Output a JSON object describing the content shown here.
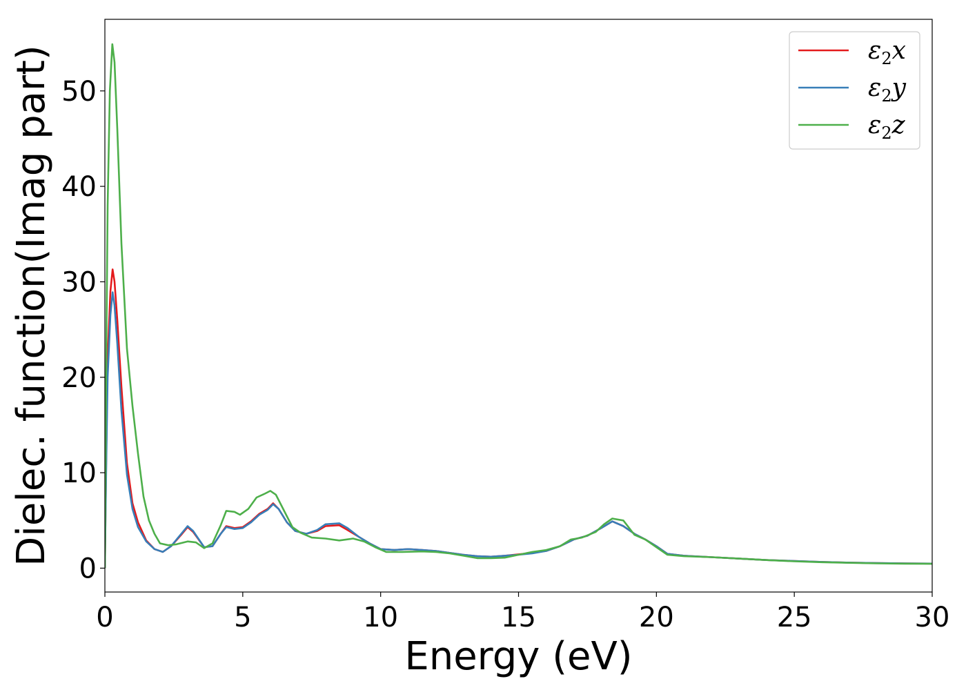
{
  "chart_data": {
    "type": "line",
    "title": "",
    "xlabel": "Energy (eV)",
    "ylabel": "Dielec. function(Imag part)",
    "xlim": [
      0,
      30
    ],
    "ylim": [
      -2.5,
      57.5
    ],
    "xticks": [
      0,
      5,
      10,
      15,
      20,
      25,
      30
    ],
    "yticks": [
      0,
      10,
      20,
      30,
      40,
      50
    ],
    "grid": false,
    "legend_position": "top-right",
    "series": [
      {
        "name": "ε₂x",
        "legend": {
          "base": "ε",
          "sub": "2",
          "var": "x"
        },
        "color": "#e41a1c",
        "points": [
          [
            0,
            0
          ],
          [
            0.05,
            12
          ],
          [
            0.1,
            22
          ],
          [
            0.2,
            29
          ],
          [
            0.28,
            31.3
          ],
          [
            0.35,
            30
          ],
          [
            0.45,
            26
          ],
          [
            0.6,
            19
          ],
          [
            0.8,
            11
          ],
          [
            1.0,
            6.8
          ],
          [
            1.2,
            4.8
          ],
          [
            1.5,
            2.9
          ],
          [
            1.8,
            2.0
          ],
          [
            2.1,
            1.7
          ],
          [
            2.4,
            2.3
          ],
          [
            2.8,
            3.6
          ],
          [
            3.0,
            4.3
          ],
          [
            3.2,
            3.8
          ],
          [
            3.6,
            2.2
          ],
          [
            3.9,
            2.3
          ],
          [
            4.2,
            3.6
          ],
          [
            4.4,
            4.4
          ],
          [
            4.7,
            4.2
          ],
          [
            5.0,
            4.3
          ],
          [
            5.3,
            4.9
          ],
          [
            5.6,
            5.7
          ],
          [
            5.9,
            6.2
          ],
          [
            6.1,
            6.8
          ],
          [
            6.3,
            6.2
          ],
          [
            6.6,
            4.8
          ],
          [
            6.9,
            3.9
          ],
          [
            7.3,
            3.6
          ],
          [
            7.7,
            3.9
          ],
          [
            8.0,
            4.4
          ],
          [
            8.5,
            4.5
          ],
          [
            8.8,
            4.0
          ],
          [
            9.2,
            3.3
          ],
          [
            9.6,
            2.6
          ],
          [
            10.0,
            2.0
          ],
          [
            10.5,
            1.9
          ],
          [
            11.0,
            2.0
          ],
          [
            11.5,
            1.9
          ],
          [
            12.0,
            1.8
          ],
          [
            12.5,
            1.6
          ],
          [
            13.0,
            1.4
          ],
          [
            13.5,
            1.25
          ],
          [
            14.0,
            1.2
          ],
          [
            14.5,
            1.3
          ],
          [
            15.0,
            1.45
          ],
          [
            15.5,
            1.6
          ],
          [
            16.0,
            1.8
          ],
          [
            16.5,
            2.3
          ],
          [
            17.0,
            3.0
          ],
          [
            17.5,
            3.4
          ],
          [
            18.0,
            4.2
          ],
          [
            18.4,
            4.9
          ],
          [
            18.8,
            4.4
          ],
          [
            19.2,
            3.6
          ],
          [
            19.6,
            3.0
          ],
          [
            20.0,
            2.3
          ],
          [
            20.4,
            1.5
          ],
          [
            21.0,
            1.3
          ],
          [
            22.0,
            1.15
          ],
          [
            23.0,
            1.0
          ],
          [
            24.0,
            0.85
          ],
          [
            25.0,
            0.75
          ],
          [
            26.0,
            0.65
          ],
          [
            27.0,
            0.58
          ],
          [
            28.0,
            0.53
          ],
          [
            29.0,
            0.5
          ],
          [
            30.0,
            0.48
          ]
        ]
      },
      {
        "name": "ε₂y",
        "legend": {
          "base": "ε",
          "sub": "2",
          "var": "y"
        },
        "color": "#377eb8",
        "points": [
          [
            0,
            0
          ],
          [
            0.05,
            11
          ],
          [
            0.1,
            20
          ],
          [
            0.2,
            26.5
          ],
          [
            0.28,
            28.9
          ],
          [
            0.35,
            27.5
          ],
          [
            0.45,
            23.5
          ],
          [
            0.6,
            16.5
          ],
          [
            0.8,
            9.8
          ],
          [
            1.0,
            6.2
          ],
          [
            1.2,
            4.3
          ],
          [
            1.5,
            2.8
          ],
          [
            1.8,
            2.0
          ],
          [
            2.1,
            1.7
          ],
          [
            2.4,
            2.3
          ],
          [
            2.8,
            3.7
          ],
          [
            3.0,
            4.4
          ],
          [
            3.2,
            3.9
          ],
          [
            3.6,
            2.2
          ],
          [
            3.9,
            2.3
          ],
          [
            4.2,
            3.6
          ],
          [
            4.4,
            4.3
          ],
          [
            4.7,
            4.1
          ],
          [
            5.0,
            4.2
          ],
          [
            5.3,
            4.8
          ],
          [
            5.6,
            5.6
          ],
          [
            5.9,
            6.1
          ],
          [
            6.1,
            6.7
          ],
          [
            6.3,
            6.2
          ],
          [
            6.6,
            4.8
          ],
          [
            6.9,
            3.9
          ],
          [
            7.3,
            3.6
          ],
          [
            7.7,
            4.0
          ],
          [
            8.0,
            4.6
          ],
          [
            8.5,
            4.7
          ],
          [
            8.8,
            4.2
          ],
          [
            9.2,
            3.3
          ],
          [
            9.6,
            2.6
          ],
          [
            10.0,
            2.0
          ],
          [
            10.5,
            1.9
          ],
          [
            11.0,
            2.0
          ],
          [
            11.5,
            1.9
          ],
          [
            12.0,
            1.8
          ],
          [
            12.5,
            1.6
          ],
          [
            13.0,
            1.4
          ],
          [
            13.5,
            1.25
          ],
          [
            14.0,
            1.2
          ],
          [
            14.5,
            1.3
          ],
          [
            15.0,
            1.4
          ],
          [
            15.5,
            1.55
          ],
          [
            16.0,
            1.8
          ],
          [
            16.5,
            2.3
          ],
          [
            17.0,
            3.0
          ],
          [
            17.5,
            3.4
          ],
          [
            18.0,
            4.2
          ],
          [
            18.4,
            4.9
          ],
          [
            18.8,
            4.4
          ],
          [
            19.2,
            3.6
          ],
          [
            19.6,
            3.0
          ],
          [
            20.0,
            2.3
          ],
          [
            20.4,
            1.5
          ],
          [
            21.0,
            1.3
          ],
          [
            22.0,
            1.15
          ],
          [
            23.0,
            1.0
          ],
          [
            24.0,
            0.85
          ],
          [
            25.0,
            0.75
          ],
          [
            26.0,
            0.65
          ],
          [
            27.0,
            0.58
          ],
          [
            28.0,
            0.53
          ],
          [
            29.0,
            0.5
          ],
          [
            30.0,
            0.48
          ]
        ]
      },
      {
        "name": "ε₂z",
        "legend": {
          "base": "ε",
          "sub": "2",
          "var": "z"
        },
        "color": "#4daf4a",
        "points": [
          [
            0,
            0
          ],
          [
            0.05,
            22
          ],
          [
            0.1,
            38
          ],
          [
            0.18,
            50
          ],
          [
            0.27,
            54.9
          ],
          [
            0.35,
            53
          ],
          [
            0.45,
            46
          ],
          [
            0.6,
            34
          ],
          [
            0.8,
            23
          ],
          [
            1.0,
            17
          ],
          [
            1.2,
            12
          ],
          [
            1.4,
            7.5
          ],
          [
            1.6,
            5.0
          ],
          [
            1.8,
            3.6
          ],
          [
            2.0,
            2.6
          ],
          [
            2.3,
            2.4
          ],
          [
            2.6,
            2.5
          ],
          [
            3.0,
            2.8
          ],
          [
            3.3,
            2.7
          ],
          [
            3.6,
            2.1
          ],
          [
            3.9,
            2.6
          ],
          [
            4.2,
            4.5
          ],
          [
            4.4,
            6.0
          ],
          [
            4.7,
            5.9
          ],
          [
            4.9,
            5.6
          ],
          [
            5.2,
            6.2
          ],
          [
            5.5,
            7.4
          ],
          [
            5.8,
            7.8
          ],
          [
            6.0,
            8.1
          ],
          [
            6.2,
            7.7
          ],
          [
            6.5,
            6.0
          ],
          [
            6.8,
            4.3
          ],
          [
            7.1,
            3.7
          ],
          [
            7.5,
            3.2
          ],
          [
            8.0,
            3.1
          ],
          [
            8.5,
            2.9
          ],
          [
            9.0,
            3.1
          ],
          [
            9.4,
            2.8
          ],
          [
            9.8,
            2.2
          ],
          [
            10.2,
            1.7
          ],
          [
            10.8,
            1.7
          ],
          [
            11.5,
            1.75
          ],
          [
            12.0,
            1.7
          ],
          [
            12.5,
            1.55
          ],
          [
            13.0,
            1.3
          ],
          [
            13.5,
            1.05
          ],
          [
            14.0,
            1.05
          ],
          [
            14.5,
            1.1
          ],
          [
            15.0,
            1.4
          ],
          [
            15.5,
            1.7
          ],
          [
            16.0,
            1.9
          ],
          [
            16.5,
            2.3
          ],
          [
            16.9,
            3.0
          ],
          [
            17.3,
            3.2
          ],
          [
            17.8,
            3.8
          ],
          [
            18.1,
            4.6
          ],
          [
            18.4,
            5.2
          ],
          [
            18.8,
            5.0
          ],
          [
            19.2,
            3.5
          ],
          [
            19.6,
            3.0
          ],
          [
            20.0,
            2.2
          ],
          [
            20.4,
            1.4
          ],
          [
            21.0,
            1.25
          ],
          [
            22.0,
            1.15
          ],
          [
            23.0,
            1.0
          ],
          [
            24.0,
            0.85
          ],
          [
            25.0,
            0.72
          ],
          [
            26.0,
            0.62
          ],
          [
            27.0,
            0.56
          ],
          [
            28.0,
            0.5
          ],
          [
            29.0,
            0.47
          ],
          [
            30.0,
            0.46
          ]
        ]
      }
    ]
  }
}
